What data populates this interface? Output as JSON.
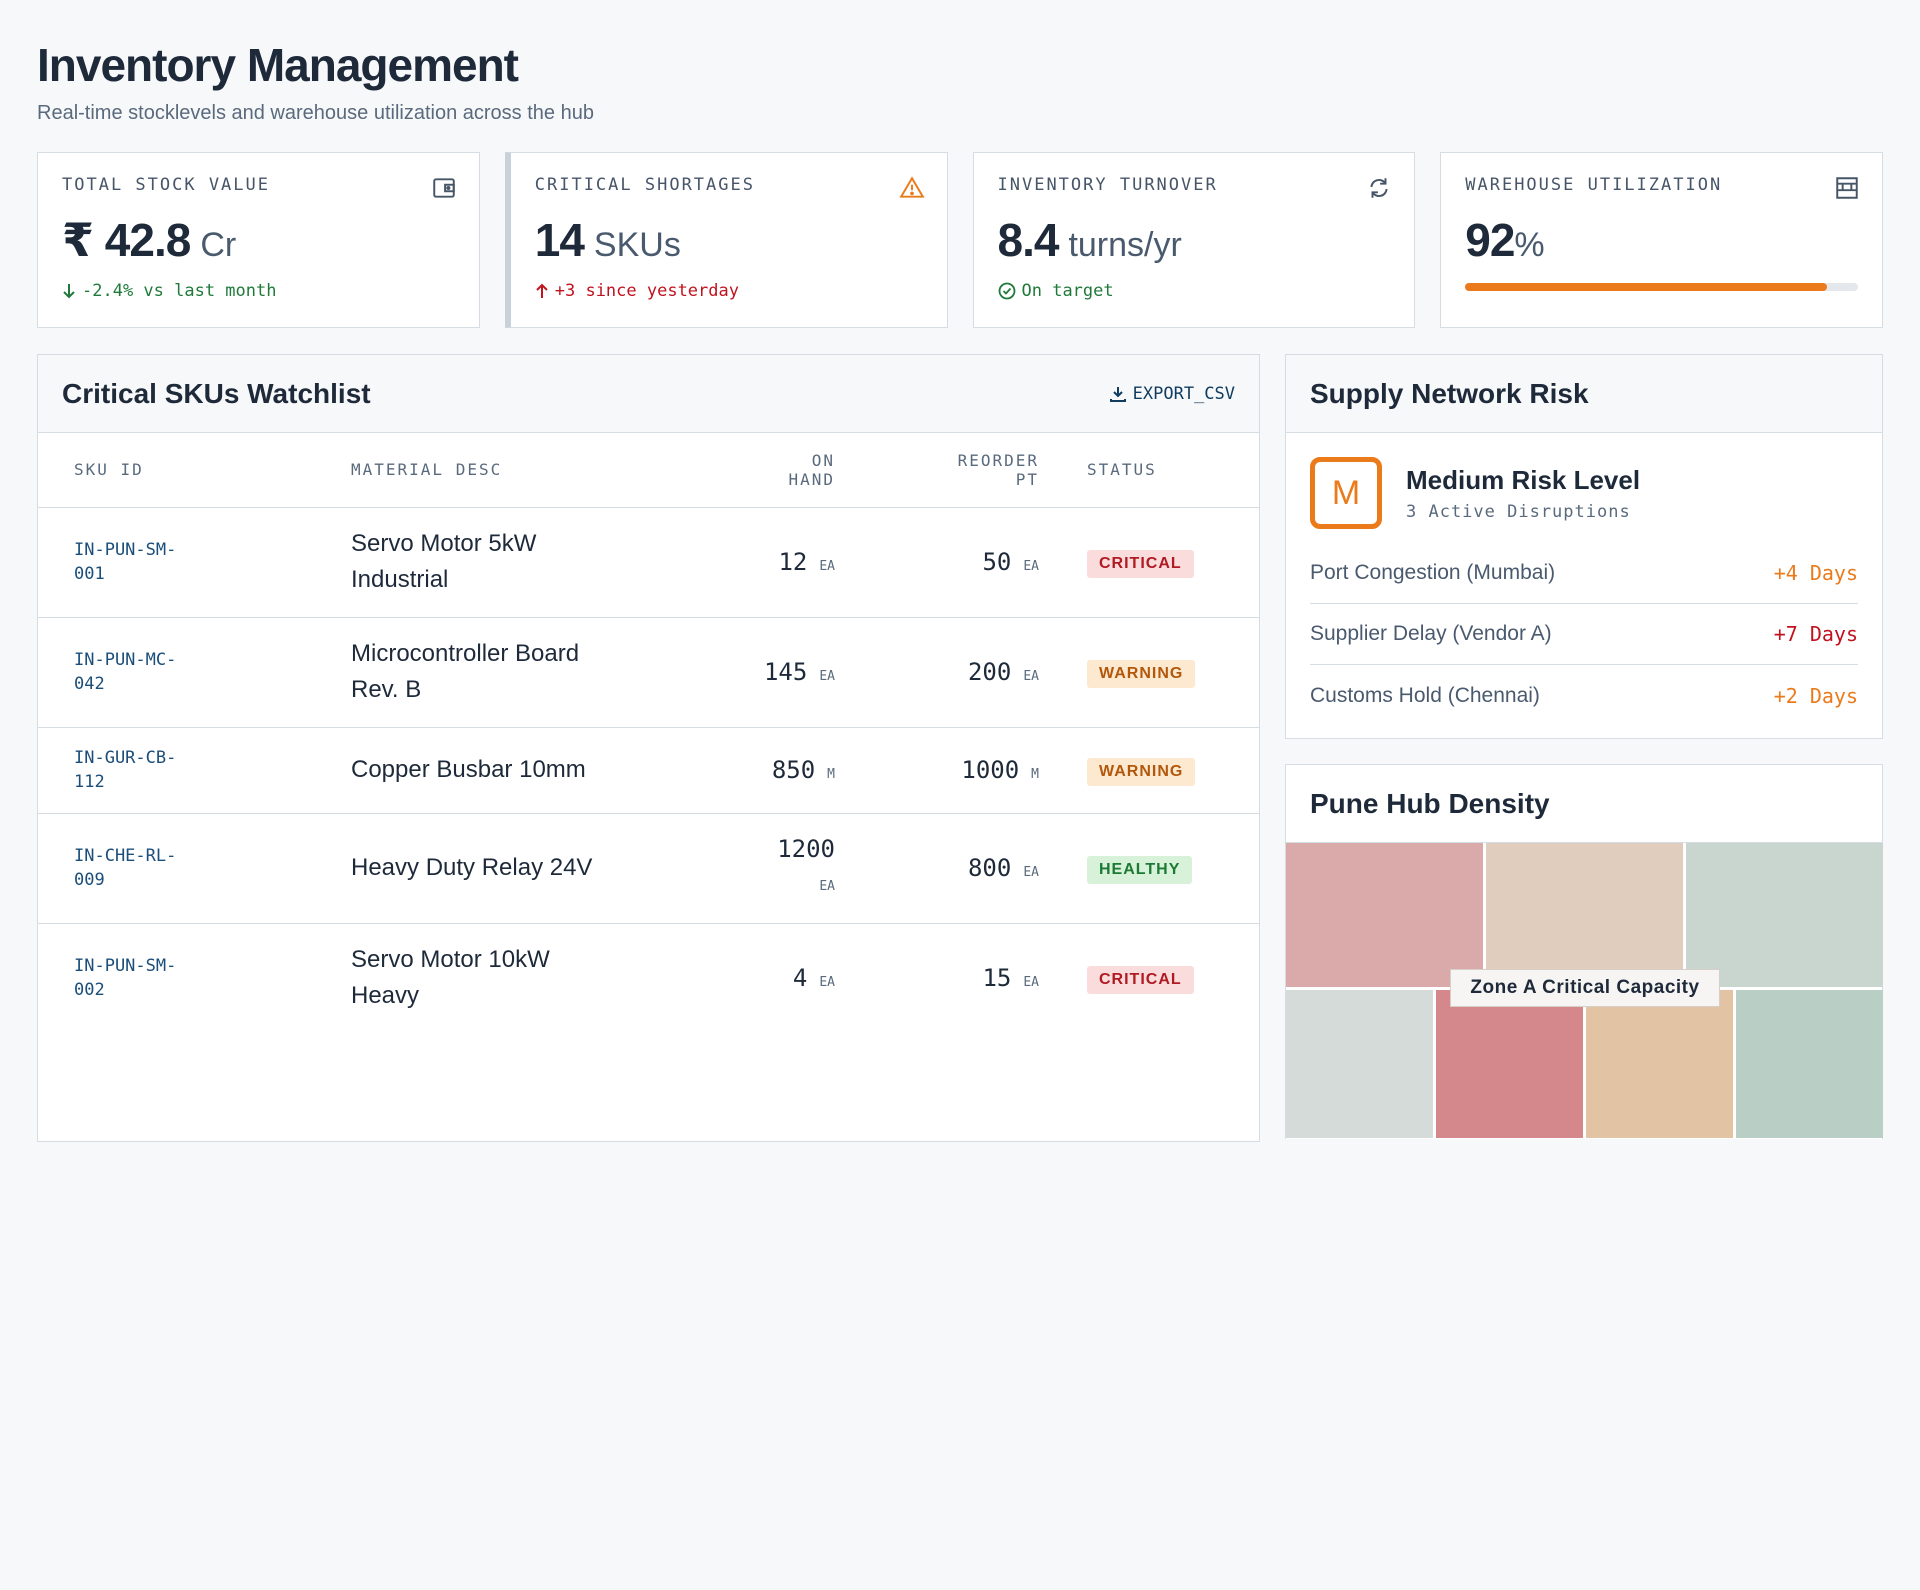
{
  "header": {
    "title": "Inventory Management",
    "subtitle": "Real-time stocklevels and warehouse utilization across the hub"
  },
  "kpis": {
    "stock_value": {
      "label": "TOTAL STOCK VALUE",
      "value": "₹ 42.8",
      "unit": "Cr",
      "delta": "-2.4% vs last month",
      "icon": "wallet-icon"
    },
    "shortages": {
      "label": "CRITICAL SHORTAGES",
      "value": "14",
      "unit": "SKUs",
      "delta": "+3 since yesterday",
      "icon": "warning-icon"
    },
    "turnover": {
      "label": "INVENTORY TURNOVER",
      "value": "8.4",
      "unit": "turns/yr",
      "delta": "On target",
      "icon": "refresh-icon"
    },
    "utilization": {
      "label": "WAREHOUSE UTILIZATION",
      "value": "92",
      "unit": "%",
      "progress": 0.92,
      "icon": "warehouse-icon"
    }
  },
  "watchlist": {
    "title": "Critical SKUs Watchlist",
    "export_label": "EXPORT_CSV",
    "columns": {
      "sku": "SKU ID",
      "desc": "MATERIAL DESC",
      "on_hand_1": "ON",
      "on_hand_2": "HAND",
      "reorder_1": "REORDER",
      "reorder_2": "PT",
      "status": "STATUS"
    },
    "rows": [
      {
        "sku1": "IN-PUN-SM-",
        "sku2": "001",
        "desc1": "Servo Motor 5kW",
        "desc2": "Industrial",
        "on_hand": "12",
        "on_unit": "EA",
        "reorder": "50",
        "re_unit": "EA",
        "status": "CRITICAL"
      },
      {
        "sku1": "IN-PUN-MC-",
        "sku2": "042",
        "desc1": "Microcontroller Board",
        "desc2": "Rev. B",
        "on_hand": "145",
        "on_unit": "EA",
        "reorder": "200",
        "re_unit": "EA",
        "status": "WARNING"
      },
      {
        "sku1": "IN-GUR-CB-",
        "sku2": "112",
        "desc1": "Copper Busbar 10mm",
        "desc2": "",
        "on_hand": "850",
        "on_unit": "M",
        "reorder": "1000",
        "re_unit": "M",
        "status": "WARNING"
      },
      {
        "sku1": "IN-CHE-RL-",
        "sku2": "009",
        "desc1": "Heavy Duty Relay 24V",
        "desc2": "",
        "on_hand": "1200",
        "on_unit": "EA",
        "reorder": "800",
        "re_unit": "EA",
        "status": "HEALTHY"
      },
      {
        "sku1": "IN-PUN-SM-",
        "sku2": "002",
        "desc1": "Servo Motor 10kW",
        "desc2": "Heavy",
        "on_hand": "4",
        "on_unit": "EA",
        "reorder": "15",
        "re_unit": "EA",
        "status": "CRITICAL"
      }
    ]
  },
  "risk": {
    "title": "Supply Network Risk",
    "badge_letter": "M",
    "level": "Medium Risk Level",
    "sub": "3 Active Disruptions",
    "items": [
      {
        "label": "Port Congestion (Mumbai)",
        "value": "+4 Days",
        "tone": "orange"
      },
      {
        "label": "Supplier Delay (Vendor A)",
        "value": "+7 Days",
        "tone": "red"
      },
      {
        "label": "Customs Hold (Chennai)",
        "value": "+2 Days",
        "tone": "orange"
      }
    ]
  },
  "density": {
    "title": "Pune Hub Density",
    "zone_label": "Zone A Critical Capacity",
    "colors": {
      "critical": "#d4888b",
      "critical_light": "#daaaab",
      "warm": "#e2c4a4",
      "warm_light": "#e1cdbd",
      "cool": "#b9cfc5",
      "cool_light": "#c8d6cf",
      "neutral": "#d5dbd9"
    }
  },
  "colors": {
    "accent_orange": "#ea7a1a",
    "critical_red": "#c0121f",
    "healthy_green": "#1f7a3a"
  }
}
